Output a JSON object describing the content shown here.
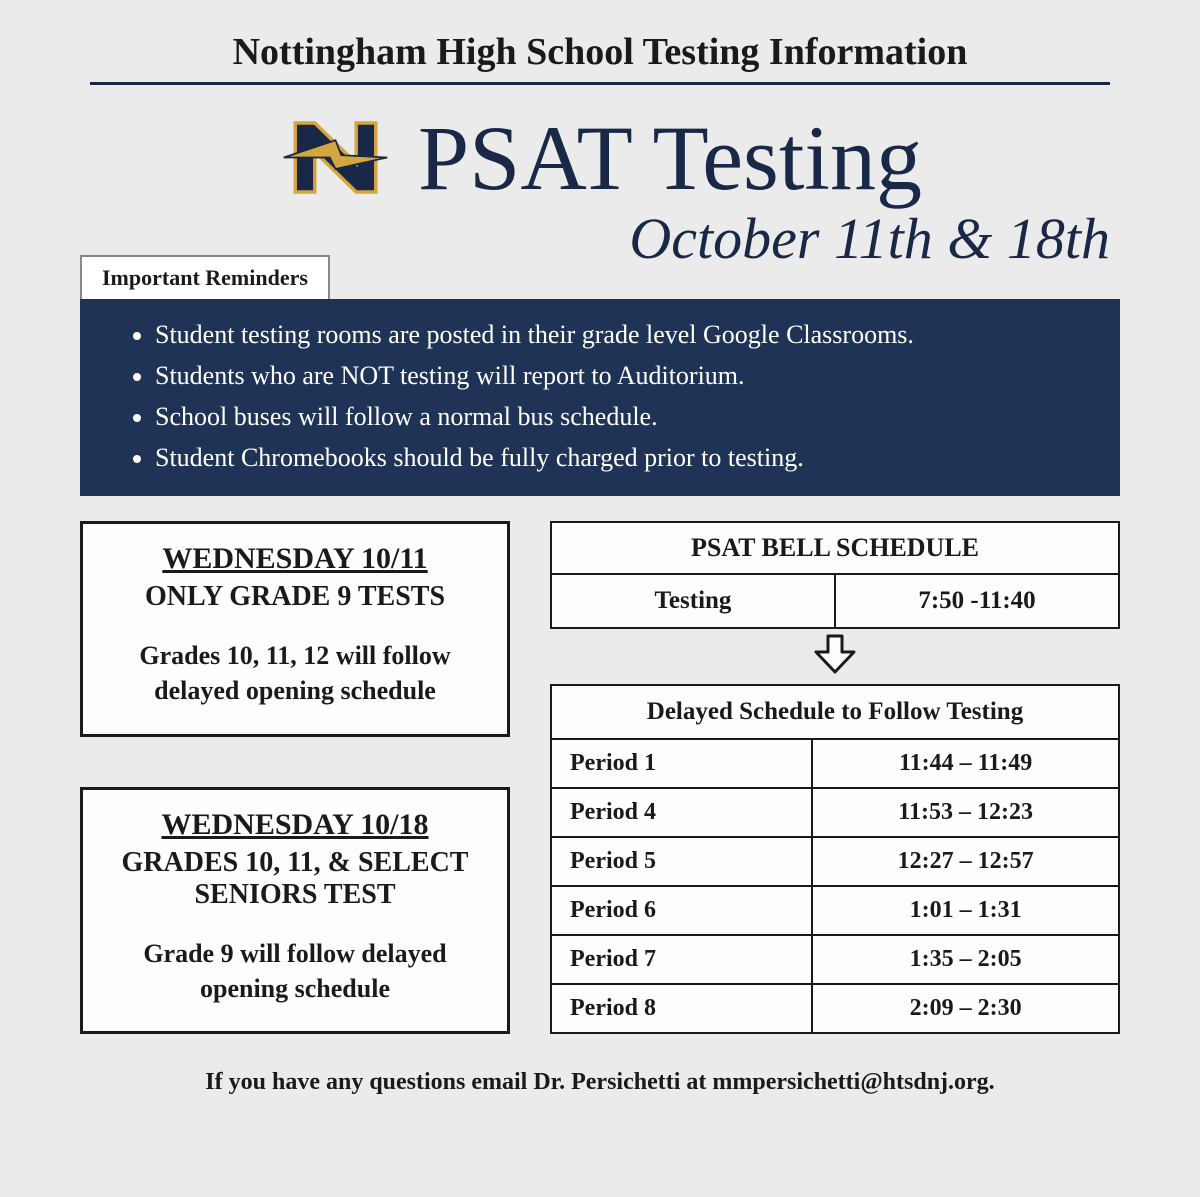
{
  "header_title": "Nottingham High School Testing Information",
  "main_title": "PSAT Testing",
  "date_line": "October 11th & 18th",
  "reminders_label": "Important Reminders",
  "reminders": [
    "Student testing rooms are posted in their grade level Google Classrooms.",
    "Students who are NOT testing will report to Auditorium.",
    "School buses will follow a normal bus schedule.",
    "Student Chromebooks should be fully charged prior to testing."
  ],
  "cards": [
    {
      "date": "WEDNESDAY 10/11",
      "who": "ONLY GRADE 9 TESTS",
      "note": "Grades 10, 11, 12 will follow delayed opening schedule"
    },
    {
      "date": "WEDNESDAY 10/18",
      "who": "GRADES 10, 11, & SELECT SENIORS TEST",
      "note": "Grade 9 will follow delayed opening schedule"
    }
  ],
  "bell": {
    "title": "PSAT BELL SCHEDULE",
    "testing_label": "Testing",
    "testing_time": "7:50 -11:40"
  },
  "delayed_title": "Delayed Schedule to Follow Testing",
  "schedule": [
    {
      "period": "Period 1",
      "time": "11:44 – 11:49"
    },
    {
      "period": "Period 4",
      "time": "11:53 – 12:23"
    },
    {
      "period": "Period 5",
      "time": "12:27 – 12:57"
    },
    {
      "period": "Period 6",
      "time": "1:01 – 1:31"
    },
    {
      "period": "Period 7",
      "time": "1:35 – 2:05"
    },
    {
      "period": "Period 8",
      "time": "2:09 – 2:30"
    }
  ],
  "footer": "If you have any questions email Dr. Persichetti at mmpersichetti@htsdnj.org.",
  "colors": {
    "navy": "#1f3356",
    "gold": "#d4a640",
    "bg": "#ebebeb"
  }
}
